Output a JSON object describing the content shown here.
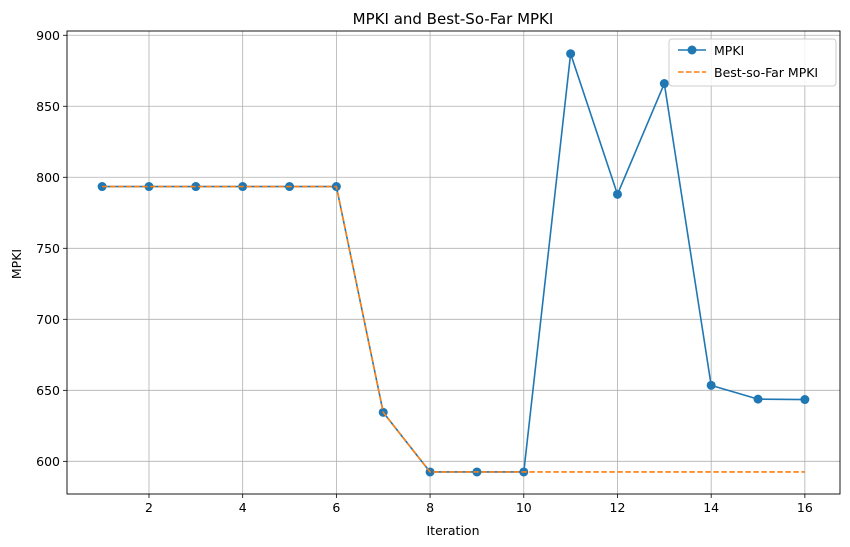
{
  "chart_data": {
    "type": "line",
    "title": "MPKI and Best-So-Far MPKI",
    "xlabel": "Iteration",
    "ylabel": "MPKI",
    "xlim": [
      0.25,
      16.75
    ],
    "ylim": [
      577,
      903
    ],
    "xticks": [
      2,
      4,
      6,
      8,
      10,
      12,
      14,
      16
    ],
    "yticks": [
      600,
      650,
      700,
      750,
      800,
      850,
      900
    ],
    "grid": true,
    "legend_position": "top-right",
    "x": [
      1,
      2,
      3,
      4,
      5,
      6,
      7,
      8,
      9,
      10,
      11,
      12,
      13,
      14,
      15,
      16
    ],
    "series": [
      {
        "name": "MPKI",
        "color": "#1f77b4",
        "style": "solid",
        "marker": "circle",
        "values": [
          793.5,
          793.5,
          793.5,
          793.5,
          793.5,
          793.5,
          634.5,
          592.5,
          592.5,
          592.5,
          887,
          788,
          866,
          653.5,
          643.8,
          643.5
        ]
      },
      {
        "name": "Best-so-Far MPKI",
        "color": "#ff7f0e",
        "style": "dashed",
        "marker": "none",
        "values": [
          793.5,
          793.5,
          793.5,
          793.5,
          793.5,
          793.5,
          634.5,
          592.5,
          592.5,
          592.5,
          592.5,
          592.5,
          592.5,
          592.5,
          592.5,
          592.5
        ]
      }
    ]
  }
}
